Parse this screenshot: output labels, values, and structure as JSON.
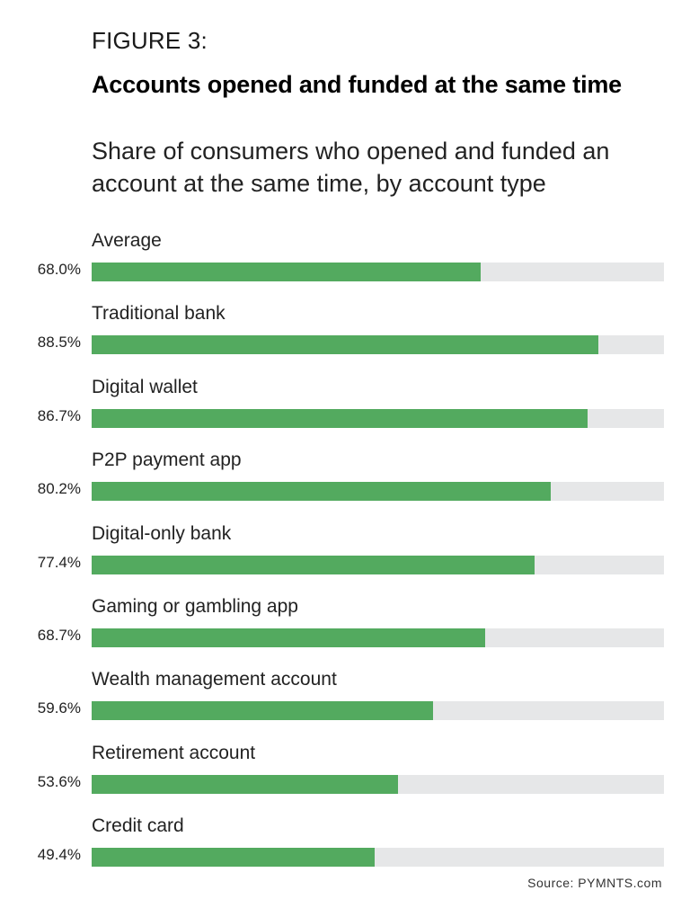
{
  "figure_label": "FIGURE 3:",
  "title": "Accounts opened and funded at the same time",
  "subtitle": "Share of consumers who opened and funded an account at the same time, by account type",
  "source": "Source: PYMNTS.com",
  "colors": {
    "bar": "#53aa5f",
    "track": "#e6e7e8"
  },
  "chart_data": {
    "type": "bar",
    "orientation": "horizontal",
    "title": "Accounts opened and funded at the same time",
    "subtitle": "Share of consumers who opened and funded an account at the same time, by account type",
    "categories": [
      "Average",
      "Traditional bank",
      "Digital wallet",
      "P2P payment app",
      "Digital-only bank",
      "Gaming or gambling app",
      "Wealth management account",
      "Retirement account",
      "Credit card"
    ],
    "values": [
      68.0,
      88.5,
      86.7,
      80.2,
      77.4,
      68.7,
      59.6,
      53.6,
      49.4
    ],
    "labels": [
      "68.0%",
      "88.5%",
      "86.7%",
      "80.2%",
      "77.4%",
      "68.7%",
      "59.6%",
      "53.6%",
      "49.4%"
    ],
    "xlabel": "",
    "ylabel": "",
    "xlim": [
      0,
      100
    ],
    "grid": false,
    "legend": "none",
    "source": "Source: PYMNTS.com"
  }
}
